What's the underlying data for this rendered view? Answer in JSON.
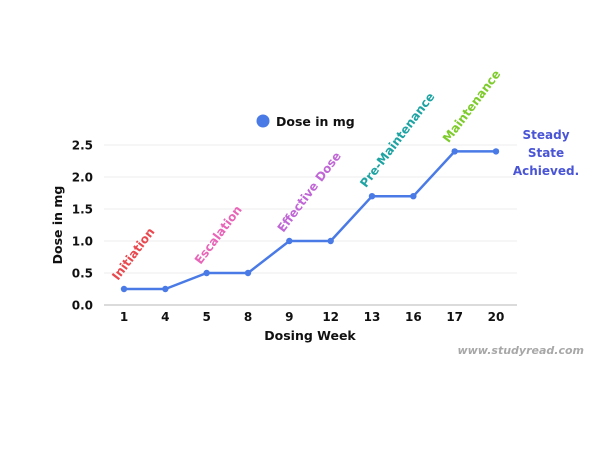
{
  "chart_data": {
    "type": "line",
    "title": "",
    "xlabel": "Dosing Week",
    "ylabel": "Dose in mg",
    "categories": [
      "1",
      "4",
      "5",
      "8",
      "9",
      "12",
      "13",
      "16",
      "17",
      "20"
    ],
    "series": [
      {
        "name": "Dose in mg",
        "color": "#4a7ae6",
        "values": [
          0.25,
          0.25,
          0.5,
          0.5,
          1.0,
          1.0,
          1.7,
          1.7,
          2.4,
          2.4
        ]
      }
    ],
    "ylim": [
      0,
      2.5
    ],
    "yticks": [
      0.0,
      0.5,
      1.0,
      1.5,
      2.0,
      2.5
    ],
    "ytick_labels": [
      "0.0",
      "0.5",
      "1.0",
      "1.5",
      "2.0",
      "2.5"
    ],
    "grid": true,
    "legend": {
      "position": "top",
      "entries": [
        "Dose in mg"
      ]
    },
    "annotations": [
      {
        "text": "Initiation",
        "at_category": "1",
        "color": "#e8484e"
      },
      {
        "text": "Escalation",
        "at_category": "5",
        "color": "#e865b8"
      },
      {
        "text": "Effective Dose",
        "at_category": "9",
        "color": "#c066d6"
      },
      {
        "text": "Pre-Maintenance",
        "at_category": "13",
        "color": "#1ea3a3"
      },
      {
        "text": "Maintenance",
        "at_category": "17",
        "color": "#7ecb2c"
      }
    ],
    "side_note": {
      "lines": [
        "Steady",
        "State",
        "Achieved."
      ],
      "color": "#4a55d6"
    }
  },
  "watermark": "www.studyread.com"
}
